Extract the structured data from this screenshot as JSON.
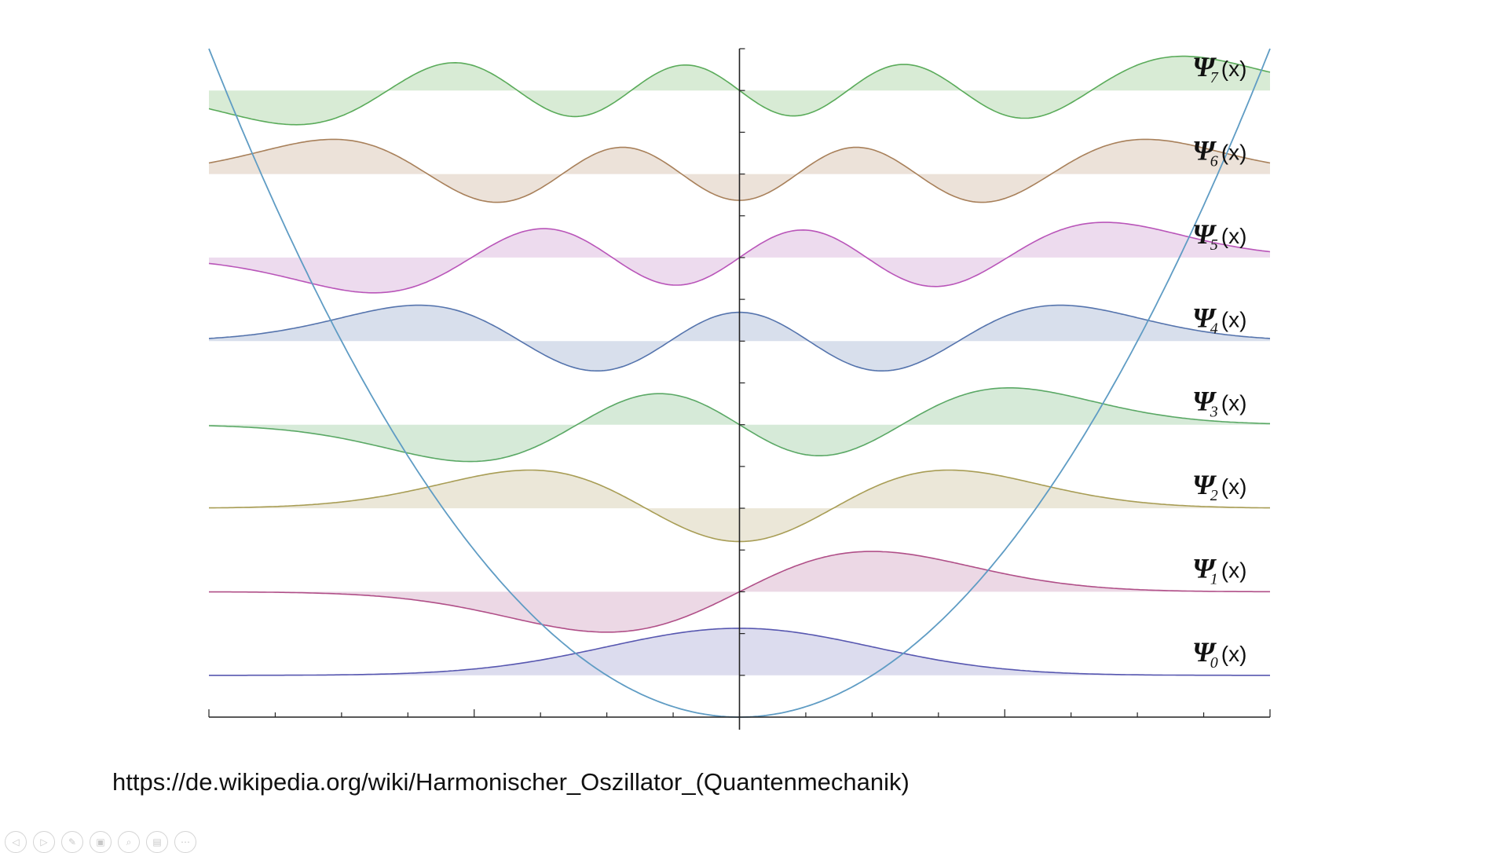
{
  "slide": {
    "source_url": "https://de.wikipedia.org/wiki/Harmonischer_Oszillator_(Quantenmechanik)"
  },
  "toolbar": {
    "buttons": [
      {
        "name": "previous-slide-button",
        "icon": "arrow-left-icon",
        "glyph": "◁"
      },
      {
        "name": "next-slide-button",
        "icon": "arrow-right-icon",
        "glyph": "▷"
      },
      {
        "name": "pen-button",
        "icon": "pen-icon",
        "glyph": "✎"
      },
      {
        "name": "slides-overview-button",
        "icon": "slides-icon",
        "glyph": "▣"
      },
      {
        "name": "zoom-button",
        "icon": "magnifier-icon",
        "glyph": "⌕"
      },
      {
        "name": "subtitles-button",
        "icon": "subtitles-icon",
        "glyph": "▤"
      },
      {
        "name": "more-options-button",
        "icon": "more-icon",
        "glyph": "⋯"
      }
    ]
  },
  "chart_data": {
    "type": "line",
    "title": "",
    "xlabel": "",
    "ylabel": "",
    "description_of_content": "Quantum harmonic oscillator eigenfunctions psi_n(x), n = 0..7, drawn offset by energy level, with parabolic potential V(x) = x^2/2",
    "xlim": [
      -4,
      4
    ],
    "ylim": [
      0,
      8
    ],
    "x_ticks": [
      -4,
      -3.5,
      -3,
      -2.5,
      -2,
      -1.5,
      -1,
      -0.5,
      0,
      0.5,
      1,
      1.5,
      2,
      2.5,
      3,
      3.5,
      4
    ],
    "y_ticks": [
      0.5,
      1,
      1.5,
      2,
      2.5,
      3,
      3.5,
      4,
      4.5,
      5,
      5.5,
      6,
      6.5,
      7,
      7.5,
      8
    ],
    "wave_scale": 0.75,
    "potential": {
      "name": "V(x)",
      "formula": "x^2/2",
      "color": "#5f9cc4"
    },
    "series": [
      {
        "n": 0,
        "name": "Ψ0(x)",
        "symbol": "Ψ",
        "sub": "0",
        "arg": "(x)",
        "baseline": 0.5,
        "color": "#5757b0",
        "fill": "#dcdcee"
      },
      {
        "n": 1,
        "name": "Ψ1(x)",
        "symbol": "Ψ",
        "sub": "1",
        "arg": "(x)",
        "baseline": 1.5,
        "color": "#b04f88",
        "fill": "#ecd8e5"
      },
      {
        "n": 2,
        "name": "Ψ2(x)",
        "symbol": "Ψ",
        "sub": "2",
        "arg": "(x)",
        "baseline": 2.5,
        "color": "#a89d55",
        "fill": "#ebe7d8"
      },
      {
        "n": 3,
        "name": "Ψ3(x)",
        "symbol": "Ψ",
        "sub": "3",
        "arg": "(x)",
        "baseline": 3.5,
        "color": "#5aa865",
        "fill": "#d6ead8"
      },
      {
        "n": 4,
        "name": "Ψ4(x)",
        "symbol": "Ψ",
        "sub": "4",
        "arg": "(x)",
        "baseline": 4.5,
        "color": "#5574ad",
        "fill": "#d8dfec"
      },
      {
        "n": 5,
        "name": "Ψ5(x)",
        "symbol": "Ψ",
        "sub": "5",
        "arg": "(x)",
        "baseline": 5.5,
        "color": "#b955b9",
        "fill": "#eddbee"
      },
      {
        "n": 6,
        "name": "Ψ6(x)",
        "symbol": "Ψ",
        "sub": "6",
        "arg": "(x)",
        "baseline": 6.5,
        "color": "#a8805a",
        "fill": "#ece2d9"
      },
      {
        "n": 7,
        "name": "Ψ7(x)",
        "symbol": "Ψ",
        "sub": "7",
        "arg": "(x)",
        "baseline": 7.5,
        "color": "#5aab5a",
        "fill": "#d8ebd5"
      }
    ],
    "grid": false,
    "legend": "right"
  }
}
